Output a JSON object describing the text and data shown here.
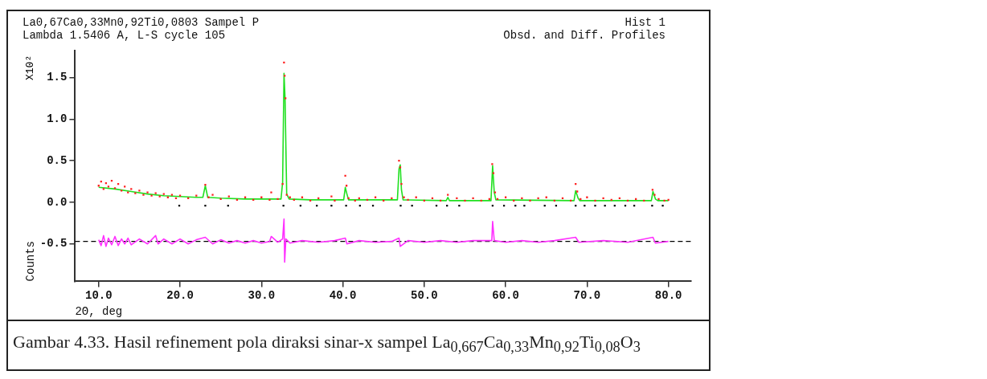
{
  "chart_data": {
    "type": "scatter",
    "title": "La0,67Ca0,33Mn0,92Ti0,0803 Sampel P",
    "subtitle": "Lambda 1.5406 A, L-S cycle  105",
    "xlabel": "2Θ, deg",
    "ylabel": "Counts",
    "annotations": [
      "Hist  1",
      "Obsd. and Diff. Profiles",
      "X10²",
      "Gambar 4.33. Hasil refinement pola diraksi sinar-x sampel La$_{0,667}$Ca$_{0,33}$Mn$_{0,92}$Ti$_{0,08}$O$_{3}$"
    ],
    "xlim": [
      7.1,
      82.8
    ],
    "xticks": [
      {
        "value": 10,
        "label": "10.0"
      },
      {
        "value": 20,
        "label": "20.0"
      },
      {
        "value": 30,
        "label": "30.0"
      },
      {
        "value": 40,
        "label": "40.0"
      },
      {
        "value": 50,
        "label": "50.0"
      },
      {
        "value": 60,
        "label": "60.0"
      },
      {
        "value": 70,
        "label": "70.0"
      },
      {
        "value": 80,
        "label": "80.0"
      }
    ],
    "ylim": [
      -0.95,
      1.82
    ],
    "yticks": [
      {
        "value": -0.5,
        "label": "-0.5"
      },
      {
        "value": 0,
        "label": "0.0"
      },
      {
        "value": 0.5,
        "label": "0.5"
      },
      {
        "value": 1,
        "label": "1.0"
      },
      {
        "value": 1.5,
        "label": "1.5"
      }
    ],
    "grid": false,
    "legend": false,
    "ref_lines": [
      {
        "axis": "y",
        "value": -0.47,
        "color": "#000000",
        "line_style": "dashed"
      }
    ],
    "series": [
      {
        "type": "scatter",
        "marker": "square",
        "color": "#ff2020",
        "x": [
          10,
          10.3,
          10.6,
          10.9,
          11.2,
          11.6,
          12,
          12.4,
          12.8,
          13.2,
          13.6,
          14,
          14.5,
          15,
          15.5,
          16,
          16.5,
          17,
          17.5,
          18,
          18.5,
          19,
          19.5,
          20,
          21,
          22,
          23.1,
          23.5,
          24,
          25,
          26,
          27,
          28,
          29,
          30,
          31,
          31.2,
          32,
          32.6,
          32.77,
          32.85,
          32.95,
          33.1,
          33.5,
          34,
          35,
          36,
          37,
          38.6,
          39,
          40.3,
          40.45,
          40.7,
          41.5,
          42,
          43,
          44,
          45,
          46,
          46.9,
          47.05,
          47.2,
          47.5,
          48,
          49,
          50,
          51,
          52,
          52.9,
          54,
          55,
          56,
          57,
          58,
          58.35,
          58.5,
          58.7,
          59,
          60,
          61,
          62,
          63,
          64,
          65,
          66,
          67,
          68,
          68.6,
          68.8,
          69.2,
          70,
          71,
          72,
          73,
          74,
          75,
          76,
          77,
          78.05,
          78.3,
          78.8,
          79.5,
          80
        ],
        "values": [
          0.2,
          0.25,
          0.16,
          0.23,
          0.19,
          0.26,
          0.17,
          0.22,
          0.14,
          0.19,
          0.12,
          0.16,
          0.11,
          0.14,
          0.09,
          0.12,
          0.08,
          0.11,
          0.07,
          0.1,
          0.06,
          0.09,
          0.05,
          0.08,
          0.05,
          0.08,
          0.21,
          0.06,
          0.09,
          0.04,
          0.07,
          0.03,
          0.06,
          0.03,
          0.06,
          0.03,
          0.12,
          0.04,
          0.22,
          1.68,
          1.52,
          1.25,
          0.09,
          0.06,
          0.03,
          0.06,
          0.02,
          0.05,
          0.07,
          0.02,
          0.32,
          0.2,
          0.05,
          0.02,
          0.05,
          0.03,
          0.06,
          0.02,
          0.05,
          0.5,
          0.42,
          0.22,
          0.06,
          0.03,
          0.06,
          0.02,
          0.05,
          0.02,
          0.09,
          0.05,
          0.02,
          0.05,
          0.02,
          0.04,
          0.46,
          0.35,
          0.12,
          0.04,
          0.06,
          0.02,
          0.05,
          0.02,
          0.05,
          0.06,
          0.02,
          0.05,
          0.02,
          0.22,
          0.13,
          0.04,
          0.06,
          0.02,
          0.05,
          0.03,
          0.05,
          0.02,
          0.04,
          0.02,
          0.15,
          0.09,
          0.04,
          0.02,
          0.03
        ]
      },
      {
        "type": "line",
        "marker": "none",
        "color": "#20e020",
        "x": [
          10,
          12,
          14,
          16,
          18,
          20,
          22,
          22.8,
          23.1,
          23.4,
          25,
          28,
          30,
          32.4,
          32.6,
          32.77,
          32.9,
          33.1,
          33.4,
          36,
          40.1,
          40.3,
          40.5,
          40.7,
          46.7,
          46.9,
          47.05,
          47.2,
          47.4,
          52.7,
          52.9,
          53.1,
          58.2,
          58.4,
          58.6,
          58.8,
          68.4,
          68.6,
          68.9,
          69.1,
          77.9,
          78.1,
          78.4,
          78.7,
          80
        ],
        "values": [
          0.18,
          0.16,
          0.13,
          0.1,
          0.08,
          0.07,
          0.06,
          0.06,
          0.2,
          0.06,
          0.05,
          0.04,
          0.04,
          0.04,
          0.24,
          1.55,
          1.24,
          0.1,
          0.04,
          0.03,
          0.03,
          0.18,
          0.1,
          0.03,
          0.03,
          0.4,
          0.45,
          0.15,
          0.03,
          0.02,
          0.06,
          0.02,
          0.02,
          0.44,
          0.12,
          0.03,
          0.02,
          0.14,
          0.05,
          0.02,
          0.02,
          0.13,
          0.04,
          0.02,
          0.02
        ]
      },
      {
        "type": "line",
        "marker": "none",
        "color": "#ff30ff",
        "x": [
          10,
          10.3,
          10.6,
          10.9,
          11.2,
          11.6,
          12,
          12.4,
          12.8,
          13.2,
          13.6,
          14,
          15,
          16,
          17,
          17.3,
          18,
          19,
          20,
          21,
          22,
          23.1,
          24,
          25,
          26,
          27,
          28,
          29,
          30,
          31,
          31.2,
          32,
          32.6,
          32.77,
          32.85,
          33,
          33.5,
          35,
          37,
          39,
          40.3,
          40.5,
          42,
          44,
          46,
          46.9,
          47.05,
          48,
          50,
          52,
          54,
          56,
          58.3,
          58.4,
          58.6,
          60,
          62,
          64,
          66,
          68.6,
          69,
          72,
          75,
          78.1,
          78.4,
          80
        ],
        "values": [
          -0.45,
          -0.52,
          -0.4,
          -0.53,
          -0.43,
          -0.51,
          -0.41,
          -0.52,
          -0.44,
          -0.5,
          -0.43,
          -0.51,
          -0.44,
          -0.5,
          -0.4,
          -0.5,
          -0.44,
          -0.5,
          -0.44,
          -0.5,
          -0.45,
          -0.42,
          -0.5,
          -0.45,
          -0.49,
          -0.46,
          -0.49,
          -0.46,
          -0.49,
          -0.47,
          -0.41,
          -0.48,
          -0.44,
          -0.2,
          -0.72,
          -0.44,
          -0.49,
          -0.46,
          -0.48,
          -0.46,
          -0.43,
          -0.5,
          -0.46,
          -0.48,
          -0.47,
          -0.43,
          -0.53,
          -0.46,
          -0.48,
          -0.46,
          -0.48,
          -0.46,
          -0.46,
          -0.23,
          -0.46,
          -0.48,
          -0.46,
          -0.48,
          -0.46,
          -0.42,
          -0.48,
          -0.46,
          -0.48,
          -0.42,
          -0.49,
          -0.47
        ]
      },
      {
        "type": "scatter",
        "marker": "square",
        "color": "#000000",
        "x": [
          19.9,
          23.1,
          25.9,
          32.7,
          34.8,
          36.8,
          38.6,
          40.4,
          42.1,
          43.7,
          47.1,
          48.5,
          51.5,
          52.8,
          54.3,
          58.4,
          59.8,
          61.2,
          62.3,
          64.8,
          66.2,
          68.6,
          69.7,
          71,
          72.2,
          73.4,
          74.7,
          75.8,
          78,
          79.3
        ],
        "values": [
          -0.04,
          -0.04,
          -0.04,
          -0.04,
          -0.04,
          -0.04,
          -0.04,
          -0.04,
          -0.04,
          -0.04,
          -0.04,
          -0.04,
          -0.04,
          -0.04,
          -0.04,
          -0.04,
          -0.04,
          -0.04,
          -0.04,
          -0.04,
          -0.04,
          -0.04,
          -0.04,
          -0.04,
          -0.04,
          -0.04,
          -0.04,
          -0.04,
          -0.04,
          -0.04
        ]
      }
    ]
  }
}
